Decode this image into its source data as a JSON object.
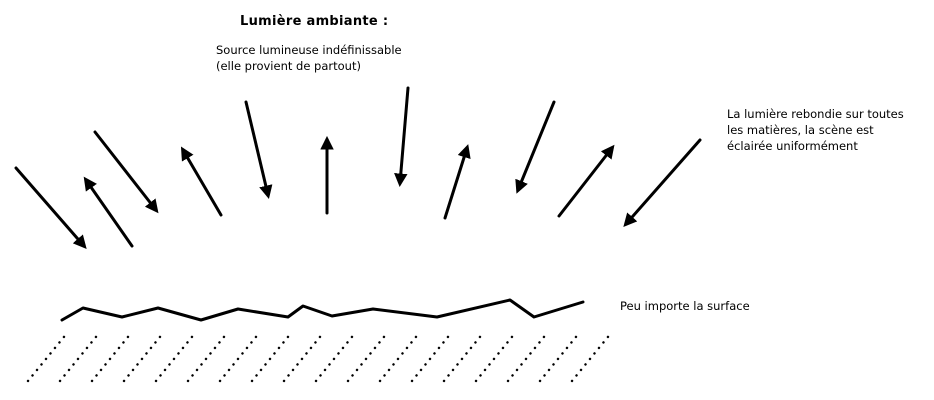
{
  "title": "Lumière ambiante :",
  "source_note": {
    "line1": "Source lumineuse indéfinissable",
    "line2": "(elle provient de partout)"
  },
  "bounce_note": {
    "line1": "La lumière rebondie sur toutes",
    "line2": "les matières, la scène est",
    "line3": "éclairée uniformément"
  },
  "surface_note": "Peu importe la surface",
  "colors": {
    "ink": "#000000",
    "background": "#ffffff"
  }
}
